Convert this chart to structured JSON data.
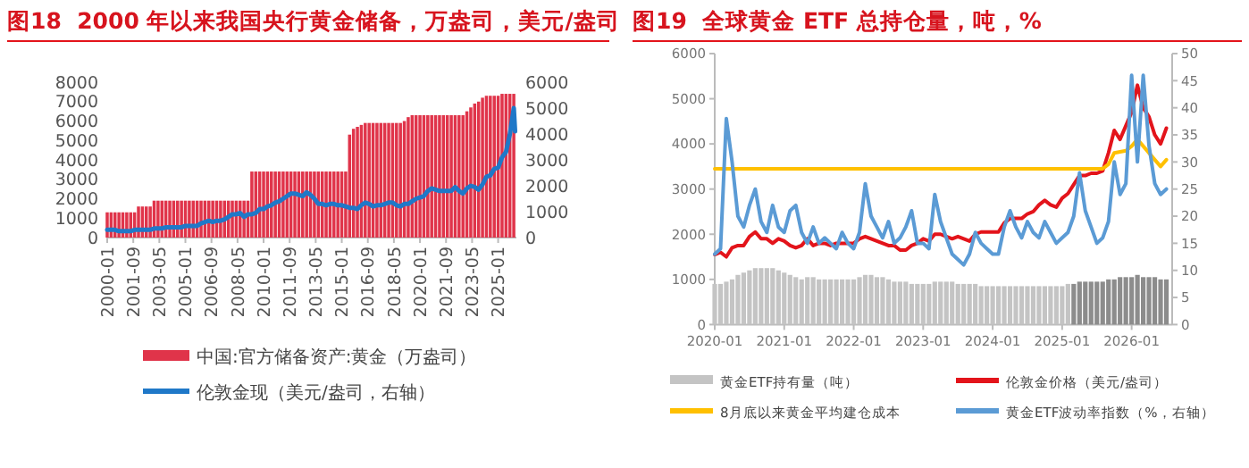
{
  "chart_data": [
    {
      "type": "bar",
      "title": "图18  2000 年以来我国央行黄金储备，万盎司，美元/盎司",
      "x": [
        "2000-01",
        "2000-04",
        "2000-07",
        "2000-10",
        "2001-01",
        "2001-04",
        "2001-07",
        "2001-10",
        "2002-01",
        "2002-04",
        "2002-07",
        "2002-10",
        "2003-01",
        "2003-04",
        "2003-07",
        "2003-10",
        "2004-01",
        "2004-04",
        "2004-07",
        "2004-10",
        "2005-01",
        "2005-04",
        "2005-07",
        "2005-10",
        "2006-01",
        "2006-04",
        "2006-07",
        "2006-10",
        "2007-01",
        "2007-04",
        "2007-07",
        "2007-10",
        "2008-01",
        "2008-04",
        "2008-07",
        "2008-10",
        "2009-01",
        "2009-04",
        "2009-07",
        "2009-10",
        "2010-01",
        "2010-04",
        "2010-07",
        "2010-10",
        "2011-01",
        "2011-04",
        "2011-07",
        "2011-10",
        "2012-01",
        "2012-04",
        "2012-07",
        "2012-10",
        "2013-01",
        "2013-04",
        "2013-07",
        "2013-10",
        "2014-01",
        "2014-04",
        "2014-07",
        "2014-10",
        "2015-01",
        "2015-04",
        "2015-07",
        "2015-10",
        "2016-01",
        "2016-04",
        "2016-07",
        "2016-10",
        "2017-01",
        "2017-04",
        "2017-07",
        "2017-10",
        "2018-01",
        "2018-04",
        "2018-07",
        "2018-10",
        "2019-01",
        "2019-04",
        "2019-07",
        "2019-10",
        "2020-01",
        "2020-04",
        "2020-07",
        "2020-10",
        "2021-01",
        "2021-04",
        "2021-07",
        "2021-10",
        "2022-01",
        "2022-04",
        "2022-07",
        "2022-10",
        "2023-01",
        "2023-04",
        "2023-07",
        "2023-10",
        "2024-01",
        "2024-04",
        "2024-07",
        "2024-10",
        "2025-01",
        "2025-04",
        "2025-07",
        "2025-10",
        "2026-01"
      ],
      "xlim": [
        "2000-01",
        "2026-03"
      ],
      "xticks": [
        "2000-01",
        "2001-09",
        "2003-05",
        "2005-01",
        "2006-09",
        "2008-05",
        "2010-01",
        "2011-09",
        "2013-05",
        "2015-01",
        "2016-09",
        "2018-05",
        "2020-01",
        "2021-09",
        "2023-05",
        "2025-01"
      ],
      "ylim": [
        0,
        8000
      ],
      "yticks": [
        0,
        1000,
        2000,
        3000,
        4000,
        5000,
        6000,
        7000,
        8000
      ],
      "y2lim": [
        0,
        6000
      ],
      "y2ticks": [
        0,
        1000,
        2000,
        3000,
        4000,
        5000,
        6000
      ],
      "legend": "bottom",
      "series": [
        {
          "type": "bar",
          "name": "中国:官方储备资产:黄金（万盎司）",
          "color": "#e0344a",
          "values": [
            1300,
            1300,
            1300,
            1300,
            1300,
            1300,
            1300,
            1300,
            1600,
            1600,
            1600,
            1600,
            1900,
            1900,
            1900,
            1900,
            1900,
            1900,
            1900,
            1900,
            1900,
            1900,
            1900,
            1900,
            1900,
            1900,
            1900,
            1900,
            1900,
            1900,
            1900,
            1900,
            1900,
            1900,
            1900,
            1900,
            1900,
            3400,
            3400,
            3400,
            3400,
            3400,
            3400,
            3400,
            3400,
            3400,
            3400,
            3400,
            3400,
            3400,
            3400,
            3400,
            3400,
            3400,
            3400,
            3400,
            3400,
            3400,
            3400,
            3400,
            3400,
            3400,
            5300,
            5600,
            5700,
            5800,
            5900,
            5900,
            5900,
            5900,
            5900,
            5900,
            5900,
            5900,
            5900,
            5900,
            6000,
            6200,
            6300,
            6300,
            6300,
            6300,
            6300,
            6300,
            6300,
            6300,
            6300,
            6300,
            6300,
            6300,
            6300,
            6300,
            6500,
            6700,
            6900,
            7000,
            7200,
            7300,
            7300,
            7300,
            7300,
            7400,
            7400,
            7400,
            7400
          ]
        },
        {
          "type": "line",
          "axis": "y2",
          "name": "伦敦金现（美元/盎司，右轴）",
          "color": "#1f78c8",
          "x": [
            "2000-01",
            "2000-04",
            "2000-07",
            "2000-10",
            "2001-01",
            "2001-04",
            "2001-07",
            "2001-10",
            "2002-01",
            "2002-04",
            "2002-07",
            "2002-10",
            "2003-01",
            "2003-04",
            "2003-07",
            "2003-10",
            "2004-01",
            "2004-04",
            "2004-07",
            "2004-10",
            "2005-01",
            "2005-04",
            "2005-07",
            "2005-10",
            "2006-01",
            "2006-04",
            "2006-07",
            "2006-10",
            "2007-01",
            "2007-04",
            "2007-07",
            "2007-10",
            "2008-01",
            "2008-04",
            "2008-07",
            "2008-10",
            "2009-01",
            "2009-04",
            "2009-07",
            "2009-10",
            "2010-01",
            "2010-04",
            "2010-07",
            "2010-10",
            "2011-01",
            "2011-04",
            "2011-07",
            "2011-10",
            "2012-01",
            "2012-04",
            "2012-07",
            "2012-10",
            "2013-01",
            "2013-04",
            "2013-07",
            "2013-10",
            "2014-01",
            "2014-04",
            "2014-07",
            "2014-10",
            "2015-01",
            "2015-04",
            "2015-07",
            "2015-10",
            "2016-01",
            "2016-04",
            "2016-07",
            "2016-10",
            "2017-01",
            "2017-04",
            "2017-07",
            "2017-10",
            "2018-01",
            "2018-04",
            "2018-07",
            "2018-10",
            "2019-01",
            "2019-04",
            "2019-07",
            "2019-10",
            "2020-01",
            "2020-04",
            "2020-07",
            "2020-10",
            "2021-01",
            "2021-04",
            "2021-07",
            "2021-10",
            "2022-01",
            "2022-04",
            "2022-07",
            "2022-10",
            "2023-01",
            "2023-04",
            "2023-07",
            "2023-10",
            "2024-01",
            "2024-04",
            "2024-07",
            "2024-10",
            "2025-01",
            "2025-04",
            "2025-07",
            "2025-10",
            "2026-01",
            "2026-02"
          ],
          "values": [
            300,
            300,
            300,
            250,
            250,
            250,
            250,
            300,
            300,
            300,
            300,
            300,
            350,
            350,
            350,
            400,
            400,
            400,
            400,
            400,
            450,
            450,
            450,
            450,
            550,
            600,
            650,
            600,
            650,
            650,
            700,
            800,
            900,
            900,
            950,
            800,
            900,
            900,
            950,
            1100,
            1100,
            1200,
            1250,
            1350,
            1400,
            1500,
            1600,
            1700,
            1700,
            1650,
            1600,
            1750,
            1650,
            1500,
            1300,
            1300,
            1250,
            1300,
            1300,
            1250,
            1250,
            1200,
            1150,
            1150,
            1100,
            1250,
            1350,
            1300,
            1200,
            1250,
            1250,
            1300,
            1350,
            1350,
            1250,
            1200,
            1300,
            1300,
            1400,
            1500,
            1550,
            1600,
            1800,
            1900,
            1850,
            1800,
            1800,
            1800,
            1800,
            1950,
            1800,
            1700,
            1900,
            2000,
            1950,
            1850,
            2050,
            2350,
            2400,
            2650,
            2700,
            3100,
            3300,
            4000,
            5000,
            4100
          ]
        }
      ]
    },
    {
      "type": "bar",
      "title": "图19  全球黄金 ETF 总持仓量，吨，%",
      "x": [
        "2020-01",
        "2020-02",
        "2020-03",
        "2020-04",
        "2020-05",
        "2020-06",
        "2020-07",
        "2020-08",
        "2020-09",
        "2020-10",
        "2020-11",
        "2020-12",
        "2021-01",
        "2021-02",
        "2021-03",
        "2021-04",
        "2021-05",
        "2021-06",
        "2021-07",
        "2021-08",
        "2021-09",
        "2021-10",
        "2021-11",
        "2021-12",
        "2022-01",
        "2022-02",
        "2022-03",
        "2022-04",
        "2022-05",
        "2022-06",
        "2022-07",
        "2022-08",
        "2022-09",
        "2022-10",
        "2022-11",
        "2022-12",
        "2023-01",
        "2023-02",
        "2023-03",
        "2023-04",
        "2023-05",
        "2023-06",
        "2023-07",
        "2023-08",
        "2023-09",
        "2023-10",
        "2023-11",
        "2023-12",
        "2024-01",
        "2024-02",
        "2024-03",
        "2024-04",
        "2024-05",
        "2024-06",
        "2024-07",
        "2024-08",
        "2024-09",
        "2024-10",
        "2024-11",
        "2024-12",
        "2025-01",
        "2025-02",
        "2025-03",
        "2025-04",
        "2025-05",
        "2025-06",
        "2025-07",
        "2025-08",
        "2025-09",
        "2025-10",
        "2025-11",
        "2025-12",
        "2026-01",
        "2026-02",
        "2026-03",
        "2026-04",
        "2026-05",
        "2026-06",
        "2026-07"
      ],
      "xlim": [
        "2020-01",
        "2026-08"
      ],
      "xticks": [
        "2020-01",
        "2021-01",
        "2022-01",
        "2023-01",
        "2024-01",
        "2025-01",
        "2026-01"
      ],
      "ylim": [
        0,
        6000
      ],
      "yticks": [
        0,
        1000,
        2000,
        3000,
        4000,
        5000,
        6000
      ],
      "y2lim": [
        0,
        50
      ],
      "y2ticks": [
        0,
        5,
        10,
        15,
        20,
        25,
        30,
        35,
        40,
        45,
        50
      ],
      "legend": "bottom",
      "series": [
        {
          "type": "bar",
          "name": "黄金ETF持有量（吨）",
          "color": "#c4c4c4",
          "colors": [
            "#c4c4c4",
            "#c4c4c4",
            "#c4c4c4",
            "#c4c4c4",
            "#c4c4c4",
            "#c4c4c4",
            "#c4c4c4",
            "#c4c4c4",
            "#c4c4c4",
            "#c4c4c4",
            "#c4c4c4",
            "#c4c4c4",
            "#c4c4c4",
            "#c4c4c4",
            "#c4c4c4",
            "#c4c4c4",
            "#c4c4c4",
            "#c4c4c4",
            "#c4c4c4",
            "#c4c4c4",
            "#c4c4c4",
            "#c4c4c4",
            "#c4c4c4",
            "#c4c4c4",
            "#c4c4c4",
            "#c4c4c4",
            "#c4c4c4",
            "#c4c4c4",
            "#c4c4c4",
            "#c4c4c4",
            "#c4c4c4",
            "#c4c4c4",
            "#c4c4c4",
            "#c4c4c4",
            "#c4c4c4",
            "#c4c4c4",
            "#c4c4c4",
            "#c4c4c4",
            "#c4c4c4",
            "#c4c4c4",
            "#c4c4c4",
            "#c4c4c4",
            "#c4c4c4",
            "#c4c4c4",
            "#c4c4c4",
            "#c4c4c4",
            "#c4c4c4",
            "#c4c4c4",
            "#c4c4c4",
            "#c4c4c4",
            "#c4c4c4",
            "#c4c4c4",
            "#c4c4c4",
            "#c4c4c4",
            "#c4c4c4",
            "#c4c4c4",
            "#c4c4c4",
            "#c4c4c4",
            "#c4c4c4",
            "#c4c4c4",
            "#c4c4c4",
            "#c4c4c4",
            "#8c8c8c",
            "#8c8c8c",
            "#8c8c8c",
            "#8c8c8c",
            "#8c8c8c",
            "#8c8c8c",
            "#8c8c8c",
            "#8c8c8c",
            "#8c8c8c",
            "#8c8c8c",
            "#8c8c8c",
            "#8c8c8c",
            "#8c8c8c",
            "#8c8c8c",
            "#8c8c8c",
            "#8c8c8c",
            "#8c8c8c"
          ],
          "values": [
            900,
            900,
            950,
            1000,
            1100,
            1150,
            1200,
            1250,
            1250,
            1250,
            1250,
            1200,
            1150,
            1100,
            1050,
            1000,
            1050,
            1050,
            1000,
            1000,
            1000,
            1000,
            1000,
            1000,
            1000,
            1050,
            1100,
            1100,
            1050,
            1050,
            1000,
            950,
            950,
            950,
            900,
            900,
            900,
            900,
            950,
            950,
            950,
            950,
            900,
            900,
            900,
            900,
            850,
            850,
            850,
            850,
            850,
            850,
            850,
            850,
            850,
            850,
            850,
            850,
            850,
            850,
            850,
            900,
            900,
            950,
            950,
            950,
            950,
            950,
            1000,
            1000,
            1050,
            1050,
            1050,
            1100,
            1050,
            1050,
            1050,
            1000,
            1000
          ]
        },
        {
          "type": "line",
          "name": "伦敦金价格（美元/盎司）",
          "color": "#e3141b",
          "x": [
            "2020-01",
            "2020-02",
            "2020-03",
            "2020-04",
            "2020-05",
            "2020-06",
            "2020-07",
            "2020-08",
            "2020-09",
            "2020-10",
            "2020-11",
            "2020-12",
            "2021-01",
            "2021-02",
            "2021-03",
            "2021-04",
            "2021-05",
            "2021-06",
            "2021-07",
            "2021-08",
            "2021-09",
            "2021-10",
            "2021-11",
            "2021-12",
            "2022-01",
            "2022-02",
            "2022-03",
            "2022-04",
            "2022-05",
            "2022-06",
            "2022-07",
            "2022-08",
            "2022-09",
            "2022-10",
            "2022-11",
            "2022-12",
            "2023-01",
            "2023-02",
            "2023-03",
            "2023-04",
            "2023-05",
            "2023-06",
            "2023-07",
            "2023-08",
            "2023-09",
            "2023-10",
            "2023-11",
            "2023-12",
            "2024-01",
            "2024-02",
            "2024-03",
            "2024-04",
            "2024-05",
            "2024-06",
            "2024-07",
            "2024-08",
            "2024-09",
            "2024-10",
            "2024-11",
            "2024-12",
            "2025-01",
            "2025-02",
            "2025-03",
            "2025-04",
            "2025-05",
            "2025-06",
            "2025-07",
            "2025-08",
            "2025-09",
            "2025-10",
            "2025-11",
            "2025-12",
            "2026-01",
            "2026-02",
            "2026-03",
            "2026-04",
            "2026-05",
            "2026-06",
            "2026-07"
          ],
          "values": [
            1550,
            1600,
            1500,
            1700,
            1750,
            1750,
            1950,
            2050,
            1900,
            1900,
            1800,
            1900,
            1850,
            1750,
            1700,
            1750,
            1900,
            1750,
            1800,
            1800,
            1750,
            1800,
            1800,
            1800,
            1800,
            1900,
            1950,
            1900,
            1850,
            1800,
            1750,
            1750,
            1650,
            1650,
            1750,
            1800,
            1900,
            1850,
            2000,
            2000,
            1950,
            1900,
            1950,
            1900,
            1850,
            2000,
            2050,
            2050,
            2050,
            2050,
            2250,
            2350,
            2350,
            2350,
            2450,
            2500,
            2650,
            2750,
            2650,
            2600,
            2800,
            2900,
            3100,
            3300,
            3300,
            3350,
            3350,
            3400,
            3800,
            4300,
            4100,
            4400,
            4700,
            5300,
            4800,
            4600,
            4200,
            4000,
            4350
          ]
        },
        {
          "type": "line",
          "name": "8月底以来黄金平均建仓成本",
          "color": "#ffc000",
          "x": [
            "2020-01",
            "2025-08",
            "2025-09",
            "2025-10",
            "2025-12",
            "2026-01",
            "2026-02",
            "2026-03",
            "2026-05",
            "2026-06",
            "2026-07"
          ],
          "values": [
            3450,
            3450,
            3550,
            3800,
            3850,
            3950,
            4100,
            3950,
            3650,
            3500,
            3650
          ]
        },
        {
          "type": "line",
          "axis": "y2",
          "name": "黄金ETF波动率指数（%，右轴）",
          "color": "#5b9bd5",
          "x": [
            "2020-01",
            "2020-02",
            "2020-03",
            "2020-04",
            "2020-05",
            "2020-06",
            "2020-07",
            "2020-08",
            "2020-09",
            "2020-10",
            "2020-11",
            "2020-12",
            "2021-01",
            "2021-02",
            "2021-03",
            "2021-04",
            "2021-05",
            "2021-06",
            "2021-07",
            "2021-08",
            "2021-09",
            "2021-10",
            "2021-11",
            "2021-12",
            "2022-01",
            "2022-02",
            "2022-03",
            "2022-04",
            "2022-05",
            "2022-06",
            "2022-07",
            "2022-08",
            "2022-09",
            "2022-10",
            "2022-11",
            "2022-12",
            "2023-01",
            "2023-02",
            "2023-03",
            "2023-04",
            "2023-05",
            "2023-06",
            "2023-07",
            "2023-08",
            "2023-09",
            "2023-10",
            "2023-11",
            "2023-12",
            "2024-01",
            "2024-02",
            "2024-03",
            "2024-04",
            "2024-05",
            "2024-06",
            "2024-07",
            "2024-08",
            "2024-09",
            "2024-10",
            "2024-11",
            "2024-12",
            "2025-01",
            "2025-02",
            "2025-03",
            "2025-04",
            "2025-05",
            "2025-06",
            "2025-07",
            "2025-08",
            "2025-09",
            "2025-10",
            "2025-11",
            "2025-12",
            "2026-01",
            "2026-02",
            "2026-03",
            "2026-04",
            "2026-05",
            "2026-06",
            "2026-07"
          ],
          "values": [
            13,
            14,
            38,
            30,
            20,
            18,
            22,
            25,
            19,
            17,
            22,
            18,
            17,
            21,
            22,
            17,
            15,
            18,
            15,
            16,
            15,
            14,
            17,
            15,
            14,
            17,
            26,
            20,
            18,
            16,
            19,
            15,
            16,
            18,
            21,
            15,
            15,
            14,
            24,
            19,
            16,
            13,
            12,
            11,
            13,
            17,
            15,
            14,
            13,
            13,
            18,
            21,
            18,
            16,
            19,
            17,
            16,
            19,
            17,
            15,
            16,
            17,
            20,
            28,
            21,
            18,
            15,
            16,
            19,
            30,
            24,
            26,
            46,
            30,
            46,
            33,
            26,
            24,
            25
          ]
        }
      ]
    }
  ]
}
